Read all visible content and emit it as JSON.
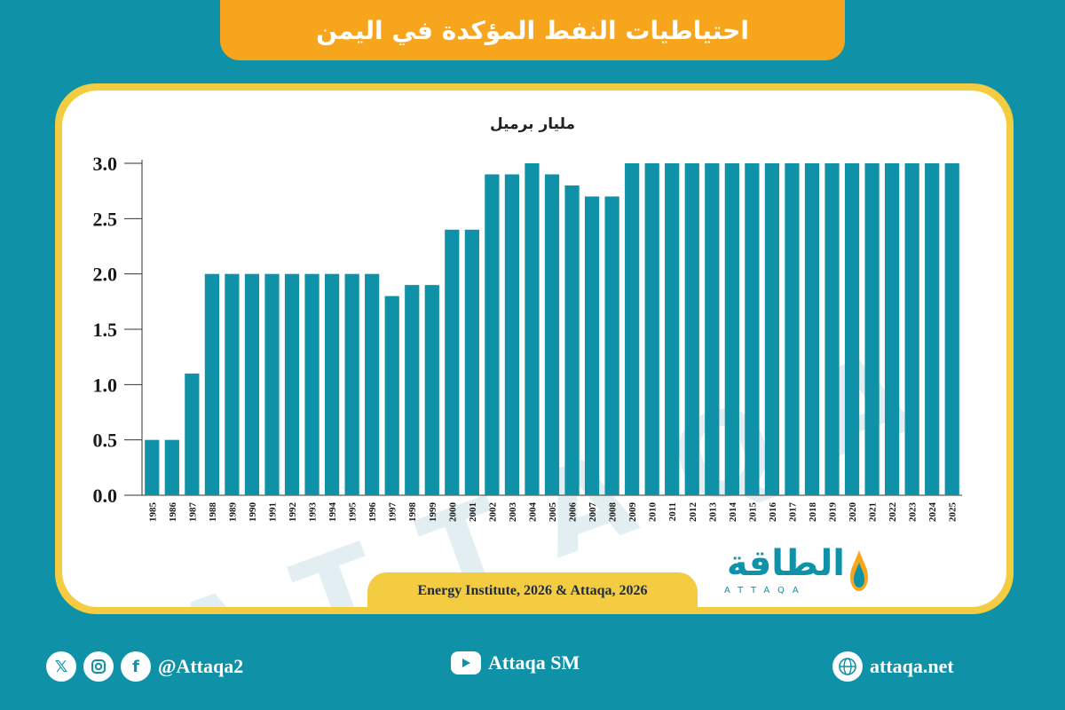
{
  "header": {
    "title": "احتياطيات النفط المؤكدة في اليمن"
  },
  "chart_data": {
    "type": "bar",
    "ylabel": "مليار برميل",
    "ylim": [
      0,
      3.0
    ],
    "yticks": [
      "0.0",
      "0.5",
      "1.0",
      "1.5",
      "2.0",
      "2.5",
      "3.0"
    ],
    "categories": [
      "1985",
      "1986",
      "1987",
      "1988",
      "1989",
      "1990",
      "1991",
      "1992",
      "1993",
      "1994",
      "1995",
      "1996",
      "1997",
      "1998",
      "1999",
      "2000",
      "2001",
      "2002",
      "2003",
      "2004",
      "2005",
      "2006",
      "2007",
      "2008",
      "2009",
      "2010",
      "2011",
      "2012",
      "2013",
      "2014",
      "2015",
      "2016",
      "2017",
      "2018",
      "2019",
      "2020",
      "2021",
      "2022",
      "2023",
      "2024",
      "2025"
    ],
    "values": [
      0.5,
      0.5,
      1.1,
      2.0,
      2.0,
      2.0,
      2.0,
      2.0,
      2.0,
      2.0,
      2.0,
      2.0,
      1.8,
      1.9,
      1.9,
      2.4,
      2.4,
      2.9,
      2.9,
      3.0,
      2.9,
      2.8,
      2.7,
      2.7,
      3.0,
      3.0,
      3.0,
      3.0,
      3.0,
      3.0,
      3.0,
      3.0,
      3.0,
      3.0,
      3.0,
      3.0,
      3.0,
      3.0,
      3.0,
      3.0,
      3.0
    ],
    "bar_color": "#0f92a7",
    "grid": false
  },
  "source": {
    "text": "Energy Institute, 2026 & Attaqa, 2026"
  },
  "logo": {
    "arabic": "الطاقة",
    "latin": "ATTAQA"
  },
  "watermark": {
    "text": "ATTAQA"
  },
  "footer": {
    "social_handle": "@Attaqa2",
    "youtube": "Attaqa SM",
    "website": "attaqa.net"
  },
  "colors": {
    "background": "#0f92a7",
    "banner": "#f7a51c",
    "frame": "#f3cc42"
  }
}
